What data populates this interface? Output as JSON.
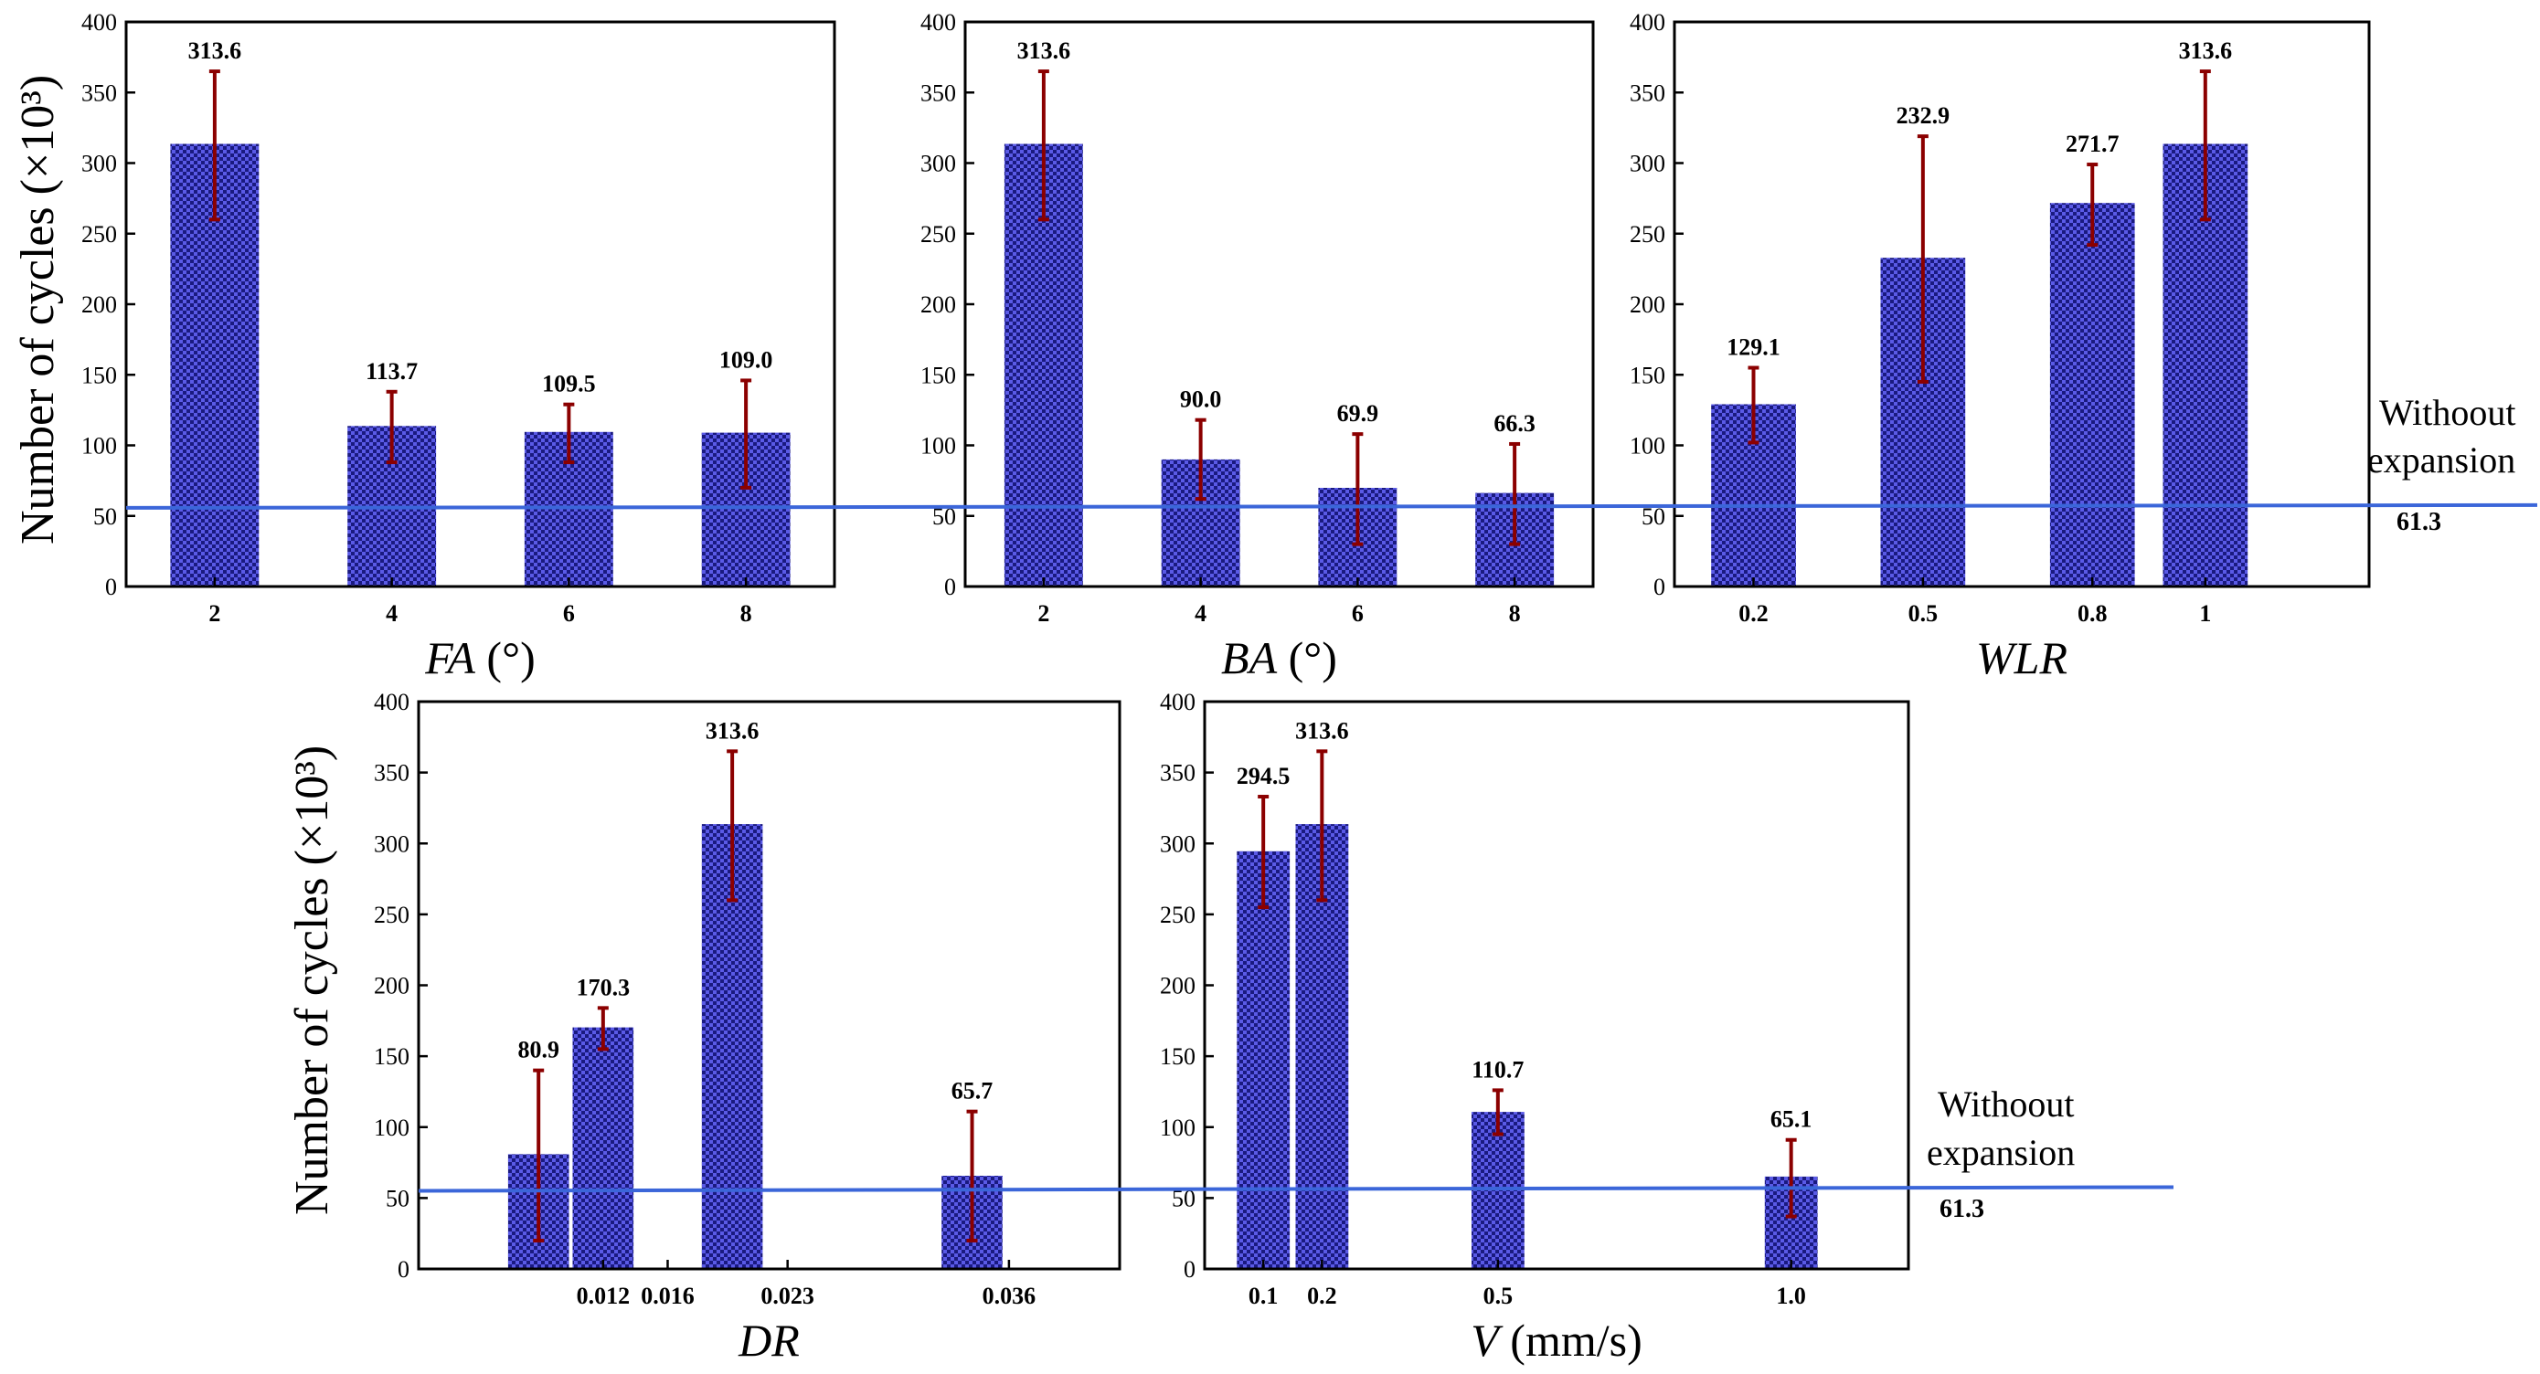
{
  "y_axis_title": "Number of cycles (×10³)",
  "reference": {
    "label_line1": "Withoout",
    "label_line2": "expansion",
    "value_label": "61.3",
    "value": 61.3,
    "color": "#3b66d9"
  },
  "colors": {
    "bar_dark": "#1a1a80",
    "bar_light": "#5a5ae6",
    "error_bar": "#8b0000",
    "axis": "#000000"
  },
  "chart_data": [
    {
      "type": "bar",
      "xlabel_italic": "FA",
      "xlabel_rest": " (°)",
      "ylim": [
        0,
        400
      ],
      "yticks": [
        0,
        50,
        100,
        150,
        200,
        250,
        300,
        350,
        400
      ],
      "xlim": [
        1,
        9
      ],
      "bar_width": 1.0,
      "categories": [
        "2",
        "4",
        "6",
        "8"
      ],
      "x": [
        2,
        4,
        6,
        8
      ],
      "values": [
        313.6,
        113.7,
        109.5,
        109.0
      ],
      "labels": [
        "313.6",
        "113.7",
        "109.5",
        "109.0"
      ],
      "err_low": [
        260,
        88,
        88,
        70
      ],
      "err_high": [
        365,
        138,
        129,
        146
      ]
    },
    {
      "type": "bar",
      "xlabel_italic": "BA",
      "xlabel_rest": " (°)",
      "ylim": [
        0,
        400
      ],
      "yticks": [
        0,
        50,
        100,
        150,
        200,
        250,
        300,
        350,
        400
      ],
      "xlim": [
        1,
        9
      ],
      "bar_width": 1.0,
      "categories": [
        "2",
        "4",
        "6",
        "8"
      ],
      "x": [
        2,
        4,
        6,
        8
      ],
      "values": [
        313.6,
        90.0,
        69.9,
        66.3
      ],
      "labels": [
        "313.6",
        "90.0",
        "69.9",
        "66.3"
      ],
      "err_low": [
        260,
        62,
        30,
        30
      ],
      "err_high": [
        365,
        118,
        108,
        101
      ]
    },
    {
      "type": "bar",
      "xlabel_italic": "WLR",
      "xlabel_rest": "",
      "ylim": [
        0,
        400
      ],
      "yticks": [
        0,
        50,
        100,
        150,
        200,
        250,
        300,
        350,
        400
      ],
      "xlim": [
        0.06,
        1.29
      ],
      "bar_width": 0.15,
      "categories": [
        "0.2",
        "0.5",
        "0.8",
        "1"
      ],
      "x": [
        0.2,
        0.5,
        0.8,
        1.0
      ],
      "values": [
        129.1,
        232.9,
        271.7,
        313.6
      ],
      "labels": [
        "129.1",
        "232.9",
        "271.7",
        "313.6"
      ],
      "err_low": [
        102,
        145,
        242,
        260
      ],
      "err_high": [
        155,
        319,
        299,
        365
      ]
    },
    {
      "type": "bar",
      "xlabel_italic": "DR",
      "xlabel_rest": "",
      "ylim": [
        0,
        400
      ],
      "yticks": [
        0,
        50,
        100,
        150,
        200,
        250,
        300,
        350,
        400
      ],
      "xlim": [
        0.0,
        0.038
      ],
      "bar_width": 0.0033,
      "categories": [
        "0.012",
        "0.016",
        "0.023",
        "0.036"
      ],
      "tick_positions": [
        0.01,
        0.0135,
        0.02,
        0.032
      ],
      "x": [
        0.0065,
        0.01,
        0.017,
        0.03
      ],
      "values": [
        80.9,
        170.3,
        313.6,
        65.7
      ],
      "labels": [
        "80.9",
        "170.3",
        "313.6",
        "65.7"
      ],
      "err_low": [
        20,
        155,
        260,
        20
      ],
      "err_high": [
        140,
        184,
        365,
        111
      ]
    },
    {
      "type": "bar",
      "xlabel_italic": "V",
      "xlabel_rest": " (mm/s)",
      "ylim": [
        0,
        400
      ],
      "yticks": [
        0,
        50,
        100,
        150,
        200,
        250,
        300,
        350,
        400
      ],
      "xlim": [
        0,
        1.2
      ],
      "bar_width": 0.09,
      "categories": [
        "0.1",
        "0.2",
        "0.5",
        "1.0"
      ],
      "x": [
        0.1,
        0.2,
        0.5,
        1.0
      ],
      "values": [
        294.5,
        313.6,
        110.7,
        65.1
      ],
      "labels": [
        "294.5",
        "313.6",
        "110.7",
        "65.1"
      ],
      "err_low": [
        255,
        260,
        95,
        37
      ],
      "err_high": [
        333,
        365,
        126,
        91
      ]
    }
  ]
}
